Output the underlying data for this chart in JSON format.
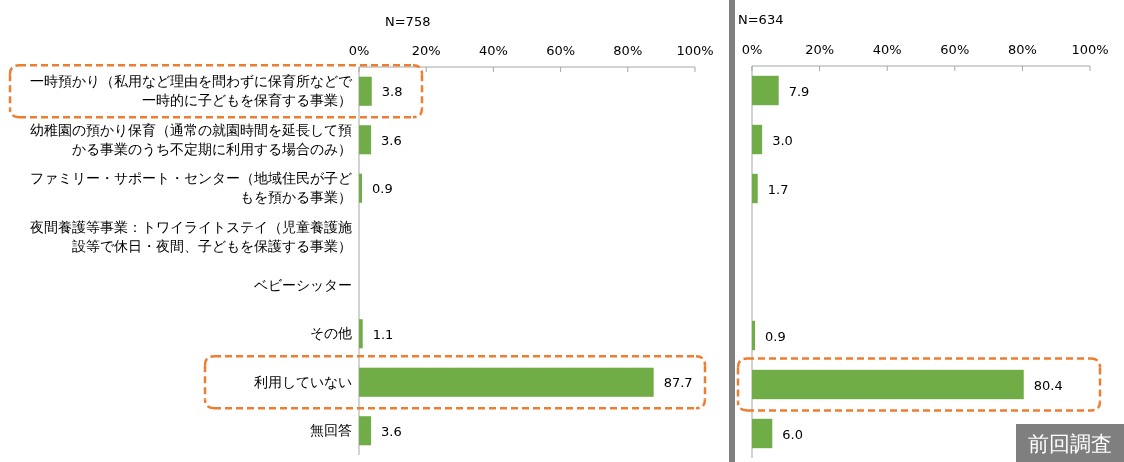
{
  "chart_data": [
    {
      "type": "bar",
      "orientation": "horizontal",
      "subtitle": "N=758",
      "categories": [
        "一時預かり（私用など理由を問わずに保育所などで一時的に子どもを保育する事業）",
        "幼稚園の預かり保育（通常の就園時間を延長して預かる事業のうち不定期に利用する場合のみ）",
        "ファミリー・サポート・センター（地域住民が子どもを預かる事業）",
        "夜間養護等事業：トワイライトステイ（児童養護施設等で休日・夜間、子どもを保護する事業）",
        "ベビーシッター",
        "その他",
        "利用していない",
        "無回答"
      ],
      "series": [
        {
          "color": "#70ad47",
          "values": [
            3.8,
            3.6,
            0.9,
            null,
            null,
            1.1,
            87.7,
            3.6
          ],
          "value_labels": [
            "3.8",
            "3.6",
            "0.9",
            null,
            null,
            "1.1",
            "87.7",
            "3.6"
          ]
        }
      ],
      "xlim": [
        0,
        100
      ],
      "xticks": [
        {
          "value": 0,
          "label": "0%"
        },
        {
          "value": 20,
          "label": "20%"
        },
        {
          "value": 40,
          "label": "40%"
        },
        {
          "value": 60,
          "label": "60%"
        },
        {
          "value": 80,
          "label": "80%"
        },
        {
          "value": 100,
          "label": "100%"
        }
      ],
      "grid": false
    },
    {
      "type": "bar",
      "orientation": "horizontal",
      "subtitle": "N=634",
      "tick_labels": "x",
      "categories": [
        null,
        null,
        null,
        null,
        null,
        null,
        null,
        null
      ],
      "series": [
        {
          "color": "#70ad47",
          "values": [
            7.9,
            3.0,
            1.7,
            null,
            null,
            0.9,
            80.4,
            6.0
          ],
          "value_labels": [
            "7.9",
            "3.0",
            "1.7",
            null,
            null,
            "0.9",
            "80.4",
            "6.0"
          ]
        }
      ],
      "xlim": [
        0,
        100
      ],
      "xticks": [
        {
          "value": 0,
          "label": "0%"
        },
        {
          "value": 20,
          "label": "20%"
        },
        {
          "value": 40,
          "label": "40%"
        },
        {
          "value": 60,
          "label": "60%"
        },
        {
          "value": 80,
          "label": "80%"
        },
        {
          "value": 100,
          "label": "100%"
        }
      ],
      "grid": false,
      "annotations": [
        "前回調査"
      ]
    }
  ]
}
